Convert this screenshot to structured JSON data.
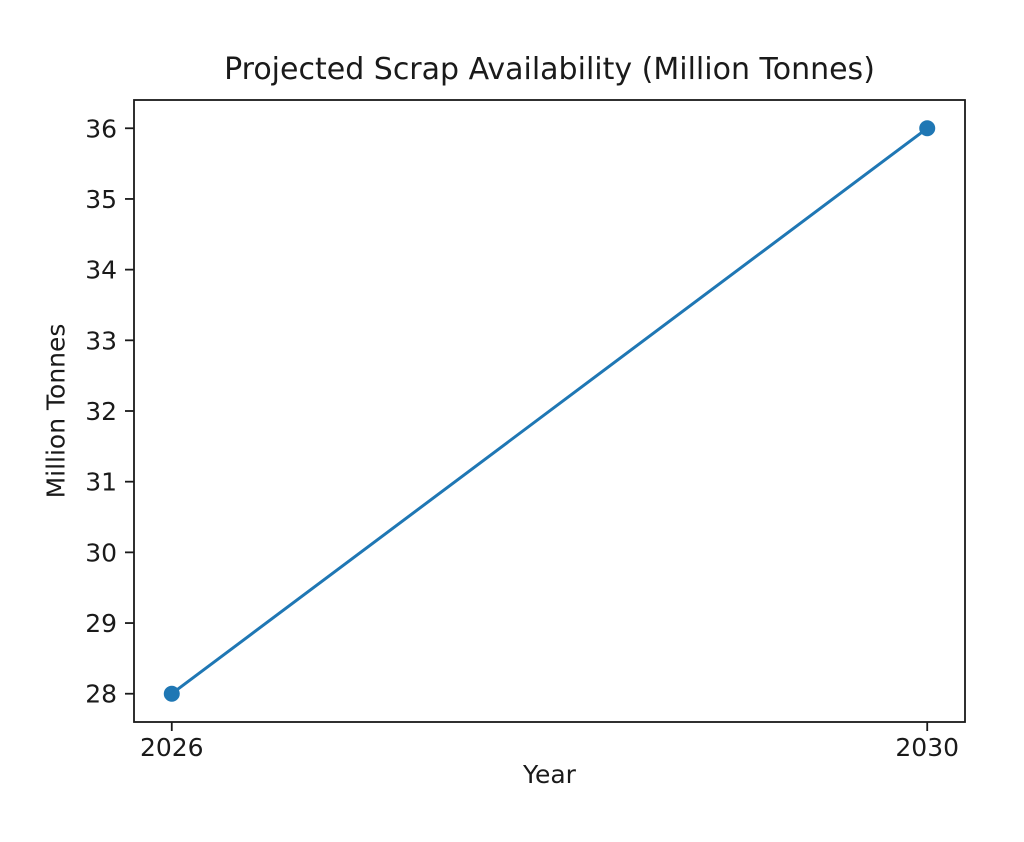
{
  "figure": {
    "background": "#ffffff"
  },
  "chart_data": {
    "type": "line",
    "title": "Projected Scrap Availability (Million Tonnes)",
    "xlabel": "Year",
    "ylabel": "Million Tonnes",
    "x": [
      2026,
      2030
    ],
    "series": [
      {
        "name": "Projected Scrap Availability",
        "values": [
          28,
          36
        ]
      }
    ],
    "xticks": [
      2026,
      2030
    ],
    "yticks": [
      28,
      29,
      30,
      31,
      32,
      33,
      34,
      35,
      36
    ],
    "xlim": [
      2025.8,
      2030.2
    ],
    "ylim": [
      27.6,
      36.4
    ],
    "grid": false,
    "legend": "none",
    "line_color": "#1f77b4",
    "marker": "circle",
    "marker_color": "#1f77b4",
    "axis_color": "#1a1a1a",
    "text_color": "#1a1a1a"
  }
}
